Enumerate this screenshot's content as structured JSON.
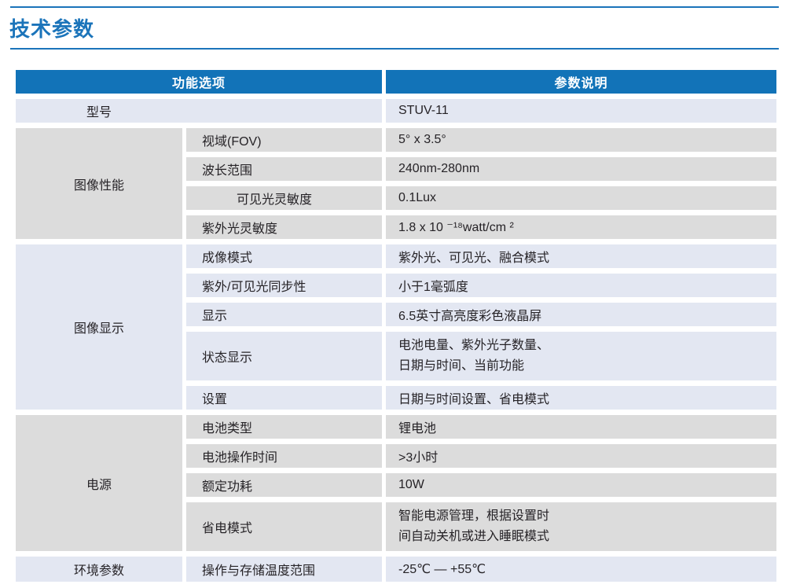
{
  "page_title": "技术参数",
  "colors": {
    "accent_blue": "#1b74ba",
    "header_bg": "#1273b8",
    "gray_cell": "#dcdcdc",
    "blue_cell": "#e3e7f2",
    "text": "#262327"
  },
  "table": {
    "headers": [
      "功能选项",
      "参数说明"
    ],
    "sections": [
      {
        "group": "型号",
        "rows": [
          {
            "label": "",
            "value": "STUV-11"
          }
        ]
      },
      {
        "group": "图像性能",
        "rows": [
          {
            "label": "视域(FOV)",
            "value": "5° x 3.5°"
          },
          {
            "label": "波长范围",
            "value": "240nm-280nm"
          },
          {
            "label": "可见光灵敏度",
            "value": "0.1Lux"
          },
          {
            "label": "紫外光灵敏度",
            "value": "1.8 x 10 ⁻¹⁸watt/cm ²"
          }
        ]
      },
      {
        "group": "图像显示",
        "rows": [
          {
            "label": "成像模式",
            "value": "紫外光、可见光、融合模式"
          },
          {
            "label": "紫外/可见光同步性",
            "value": "小于1毫弧度"
          },
          {
            "label": "显示",
            "value": "6.5英寸高亮度彩色液晶屏"
          },
          {
            "label": "状态显示",
            "value_line1": "电池电量、紫外光子数量、",
            "value_line2": "日期与时间、当前功能"
          },
          {
            "label": "设置",
            "value": "日期与时间设置、省电模式"
          }
        ]
      },
      {
        "group": "电源",
        "rows": [
          {
            "label": "电池类型",
            "value": "锂电池"
          },
          {
            "label": "电池操作时间",
            "value": ">3小时"
          },
          {
            "label": "额定功耗",
            "value": "10W"
          },
          {
            "label": "省电模式",
            "value_line1": "智能电源管理，根据设置时",
            "value_line2": "间自动关机或进入睡眠模式"
          }
        ]
      },
      {
        "group": "环境参数",
        "rows": [
          {
            "label": "操作与存储温度范围",
            "value": "-25℃ — +55℃"
          }
        ]
      }
    ]
  }
}
